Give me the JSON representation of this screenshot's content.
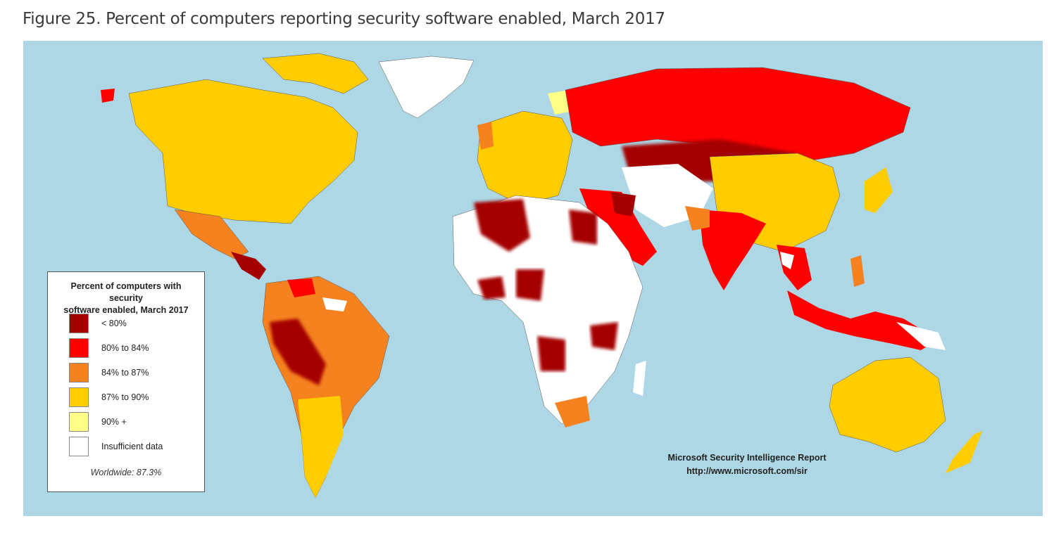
{
  "figure": {
    "title": "Figure 25. Percent of computers reporting security software enabled, March 2017"
  },
  "legend": {
    "title_line1": "Percent of computers with security",
    "title_line2": "software enabled, March 2017",
    "items": [
      {
        "label": "< 80%",
        "color": "#a50000"
      },
      {
        "label": "80% to 84%",
        "color": "#ff0000"
      },
      {
        "label": "84% to 87%",
        "color": "#f5821f"
      },
      {
        "label": "87% to 90%",
        "color": "#ffcc00"
      },
      {
        "label": "90% +",
        "color": "#ffff88"
      },
      {
        "label": "Insufficient data",
        "color": "#ffffff"
      }
    ],
    "worldwide": "Worldwide: 87.3%"
  },
  "credit": {
    "line1": "Microsoft Security Intelligence Report",
    "line2": "http://www.microsoft.com/sir"
  },
  "colors": {
    "ocean": "#add7e5",
    "lt80": "#a50000",
    "r80_84": "#ff0000",
    "r84_87": "#f5821f",
    "r87_90": "#ffcc00",
    "r90plus": "#ffff88",
    "insufficient": "#ffffff"
  }
}
